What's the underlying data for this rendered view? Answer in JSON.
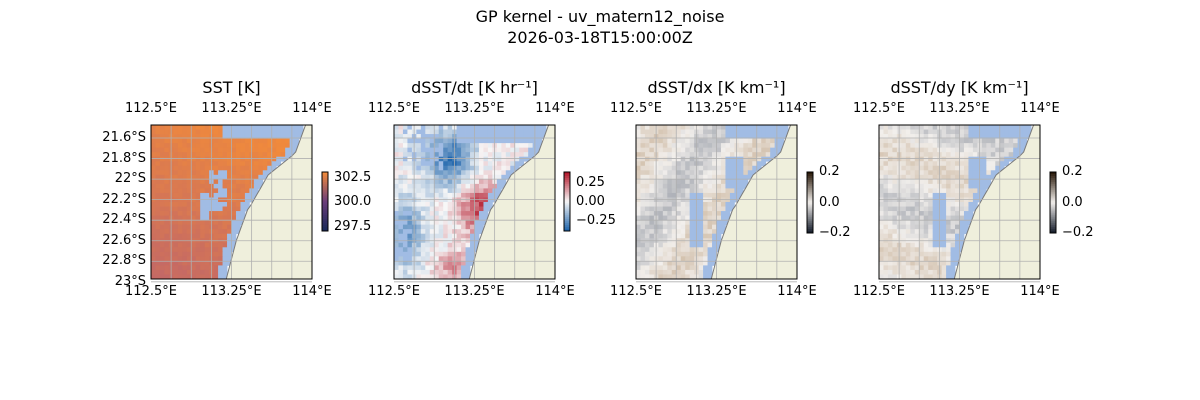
{
  "figure": {
    "title": "GP kernel - uv_matern12_noise",
    "timestamp": "2026-03-18T15:00:00Z"
  },
  "colors": {
    "land": "#efefdc",
    "nodata": "#a1bce4",
    "grid": "#b0b0b0",
    "sst_high": "#f08a3c",
    "sst_low": "#b05a78",
    "div_pos": "#b2182b",
    "div_neg": "#2166ac"
  },
  "chart_data": [
    {
      "type": "heatmap",
      "title": "SST [K]",
      "xlabel": "",
      "ylabel": "",
      "x_ticks": [
        "112.5°E",
        "113.25°E",
        "114°E"
      ],
      "y_ticks": [
        "21.6°S",
        "21.8°S",
        "22°S",
        "22.2°S",
        "22.4°S",
        "22.6°S",
        "22.8°S",
        "23°S"
      ],
      "xlim": [
        112.5,
        114.0
      ],
      "ylim": [
        -23.0,
        -21.5
      ],
      "colorbar": {
        "ticks": [
          "302.5",
          "300.0",
          "297.5"
        ],
        "range": [
          297.0,
          303.0
        ]
      },
      "grid": true
    },
    {
      "type": "heatmap",
      "title": "dSST/dt [K hr⁻¹]",
      "x_ticks": [
        "112.5°E",
        "113.25°E",
        "114°E"
      ],
      "xlim": [
        112.5,
        114.0
      ],
      "ylim": [
        -23.0,
        -21.5
      ],
      "colorbar": {
        "ticks": [
          "0.25",
          "0.00",
          "−0.25"
        ],
        "range": [
          -0.4,
          0.4
        ]
      },
      "grid": true
    },
    {
      "type": "heatmap",
      "title": "dSST/dx [K km⁻¹]",
      "x_ticks": [
        "112.5°E",
        "113.25°E",
        "114°E"
      ],
      "xlim": [
        112.5,
        114.0
      ],
      "ylim": [
        -23.0,
        -21.5
      ],
      "colorbar": {
        "ticks": [
          "0.2",
          "0.0",
          "−0.2"
        ],
        "range": [
          -0.2,
          0.2
        ]
      },
      "grid": true
    },
    {
      "type": "heatmap",
      "title": "dSST/dy [K km⁻¹]",
      "x_ticks": [
        "112.5°E",
        "113.25°E",
        "114°E"
      ],
      "xlim": [
        112.5,
        114.0
      ],
      "ylim": [
        -23.0,
        -21.5
      ],
      "colorbar": {
        "ticks": [
          "0.2",
          "0.0",
          "−0.2"
        ],
        "range": [
          -0.2,
          0.2
        ]
      },
      "grid": true
    }
  ]
}
